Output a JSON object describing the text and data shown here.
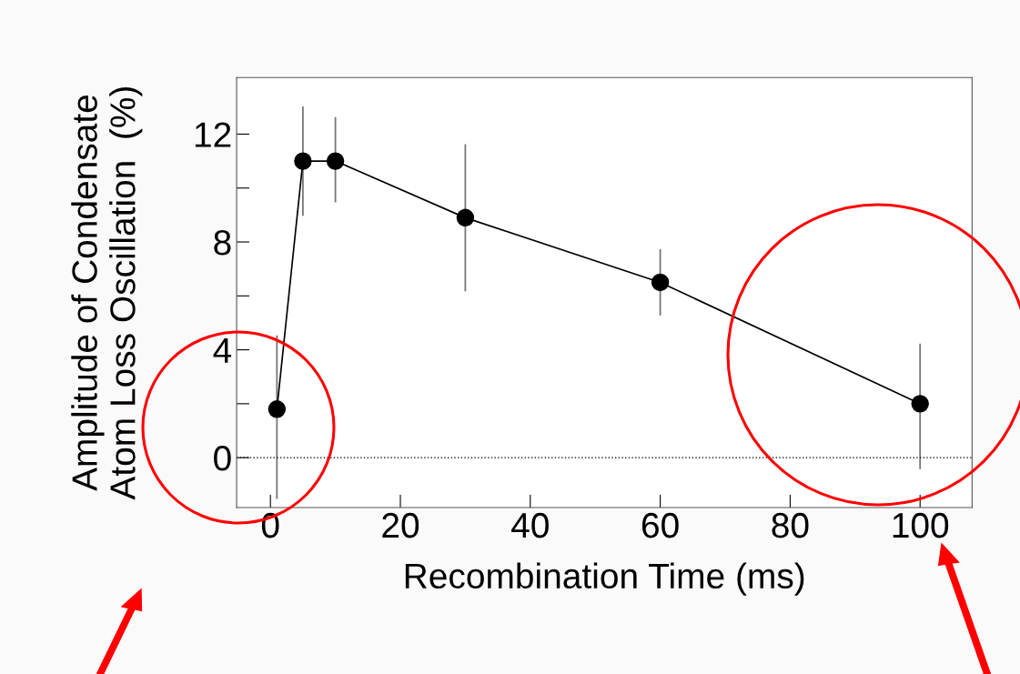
{
  "chart_data": {
    "type": "line",
    "xlabel": "Recombination Time (ms)",
    "ylabel": "Amplitude of Condensate\nAtom Loss Oscillation  (%)",
    "x": [
      1,
      5,
      10,
      30,
      60,
      100
    ],
    "series": [
      {
        "color": "#000000",
        "values": [
          1.8,
          11.0,
          11.0,
          8.9,
          6.5,
          2.0
        ],
        "errors": [
          [
            -1.5,
            4.5
          ],
          [
            9.0,
            13.0
          ],
          [
            9.5,
            12.6
          ],
          [
            6.2,
            11.6
          ],
          [
            5.3,
            7.7
          ],
          [
            -0.4,
            4.2
          ]
        ]
      }
    ],
    "xlim": [
      -5.2,
      108
    ],
    "ylim": [
      -1.85,
      14.1
    ],
    "xticks": [
      0,
      20,
      40,
      60,
      80,
      100
    ],
    "yticks": [
      0,
      {
        "value": 2,
        "label": null
      },
      4,
      {
        "value": 6,
        "label": null
      },
      8,
      {
        "value": 10,
        "label": null
      },
      12
    ],
    "ref_lines": [
      {
        "axis": "y",
        "value": 0,
        "color": "#000000",
        "line_style": "dotted"
      }
    ],
    "marker": "circle",
    "line_style": "solid",
    "grid": false,
    "legend": false
  }
}
